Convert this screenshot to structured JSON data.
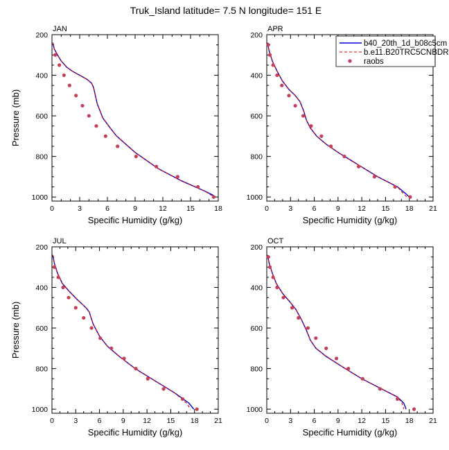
{
  "figure": {
    "title": "Truk_Island  latitude= 7.5 N longitude= 151 E"
  },
  "legend": {
    "entries": [
      {
        "label": "b40_20th_1d_b08c5cm",
        "color": "#0000cc",
        "style": "solid"
      },
      {
        "label": "b.e11.B20TRC5CNBDR",
        "color": "#e00000",
        "style": "dashed"
      },
      {
        "label": "raobs",
        "color": "#c2405a",
        "style": "marker"
      }
    ]
  },
  "chart_data": [
    {
      "type": "line",
      "panel_label": "JAN",
      "xlabel": "Specific Humidity (g/kg)",
      "ylabel": "Pressure (mb)",
      "xlim": [
        0,
        18
      ],
      "ylim": [
        200,
        1020
      ],
      "xticks": [
        0,
        3,
        6,
        9,
        12,
        15,
        18
      ],
      "yticks": [
        200,
        400,
        600,
        800,
        1000
      ],
      "series": [
        {
          "name": "b40_20th_1d_b08c5cm",
          "x": [
            0.1,
            0.25,
            0.6,
            1.0,
            1.6,
            2.2,
            3.0,
            3.8,
            4.3,
            4.5,
            4.9,
            5.5,
            6.3,
            7.0,
            9.0,
            11.5,
            14.0,
            16.5,
            17.4,
            17.7
          ],
          "y": [
            240,
            270,
            300,
            330,
            360,
            380,
            400,
            420,
            440,
            460,
            540,
            610,
            660,
            700,
            780,
            860,
            920,
            970,
            990,
            1000
          ]
        },
        {
          "name": "b.e11.B20TRC5CNBDR",
          "x": [
            0.1,
            0.25,
            0.6,
            1.0,
            1.6,
            2.2,
            3.0,
            3.8,
            4.3,
            4.5,
            4.9,
            5.5,
            6.3,
            7.0,
            9.0,
            11.5,
            14.0,
            16.5,
            17.2,
            17.5
          ],
          "y": [
            240,
            270,
            300,
            330,
            360,
            380,
            400,
            420,
            440,
            460,
            540,
            610,
            660,
            700,
            780,
            860,
            920,
            970,
            990,
            1000
          ]
        },
        {
          "name": "raobs",
          "x": [
            0.35,
            0.8,
            1.3,
            1.9,
            2.6,
            3.3,
            4.0,
            4.8,
            5.8,
            7.1,
            9.1,
            11.3,
            13.6,
            15.8,
            17.5
          ],
          "y": [
            300,
            350,
            400,
            450,
            500,
            550,
            600,
            650,
            700,
            750,
            800,
            850,
            900,
            950,
            1000
          ]
        }
      ]
    },
    {
      "type": "line",
      "panel_label": "APR",
      "xlabel": "Specific Humidity (g/kg)",
      "ylabel": "",
      "xlim": [
        0,
        21
      ],
      "ylim": [
        200,
        1020
      ],
      "xticks": [
        0,
        3,
        6,
        9,
        12,
        15,
        18,
        21
      ],
      "yticks": [
        200,
        400,
        600,
        800,
        1000
      ],
      "series": [
        {
          "name": "b40_20th_1d_b08c5cm",
          "x": [
            0.1,
            0.3,
            0.7,
            1.3,
            2.0,
            2.8,
            3.6,
            4.2,
            4.7,
            5.0,
            5.5,
            6.3,
            7.5,
            9.0,
            11.5,
            14.0,
            16.5,
            17.6,
            18.0
          ],
          "y": [
            240,
            280,
            330,
            380,
            430,
            470,
            500,
            530,
            580,
            620,
            660,
            700,
            740,
            780,
            840,
            900,
            950,
            985,
            1000
          ]
        },
        {
          "name": "b.e11.B20TRC5CNBDR",
          "x": [
            0.1,
            0.3,
            0.7,
            1.3,
            2.0,
            2.8,
            3.6,
            4.2,
            4.7,
            5.0,
            5.5,
            6.3,
            7.5,
            9.0,
            11.5,
            14.0,
            16.5,
            17.3,
            17.7
          ],
          "y": [
            240,
            280,
            330,
            380,
            430,
            470,
            500,
            530,
            580,
            620,
            660,
            700,
            740,
            780,
            840,
            900,
            950,
            985,
            1000
          ]
        },
        {
          "name": "raobs",
          "x": [
            0.2,
            0.4,
            0.8,
            1.3,
            1.9,
            2.8,
            3.6,
            4.6,
            5.6,
            6.9,
            8.1,
            9.8,
            11.6,
            13.6,
            16.2,
            18.1
          ],
          "y": [
            250,
            300,
            350,
            400,
            450,
            500,
            550,
            600,
            650,
            700,
            750,
            800,
            850,
            900,
            950,
            1000
          ]
        }
      ]
    },
    {
      "type": "line",
      "panel_label": "JUL",
      "xlabel": "Specific Humidity (g/kg)",
      "ylabel": "Pressure (mb)",
      "xlim": [
        0,
        21
      ],
      "ylim": [
        200,
        1020
      ],
      "xticks": [
        0,
        3,
        6,
        9,
        12,
        15,
        18,
        21
      ],
      "yticks": [
        200,
        400,
        600,
        800,
        1000
      ],
      "series": [
        {
          "name": "b40_20th_1d_b08c5cm",
          "x": [
            0.1,
            0.3,
            0.7,
            1.3,
            2.2,
            3.2,
            4.3,
            4.7,
            5.2,
            6.0,
            7.0,
            8.5,
            10.5,
            13.0,
            15.5,
            17.3,
            17.9
          ],
          "y": [
            240,
            280,
            330,
            380,
            420,
            460,
            500,
            520,
            580,
            640,
            690,
            740,
            800,
            860,
            920,
            970,
            1000
          ]
        },
        {
          "name": "b.e11.B20TRC5CNBDR",
          "x": [
            0.1,
            0.3,
            0.7,
            1.3,
            2.2,
            3.2,
            4.3,
            4.7,
            5.2,
            6.0,
            7.0,
            8.5,
            10.5,
            13.0,
            15.5,
            17.0,
            17.5
          ],
          "y": [
            240,
            280,
            330,
            380,
            420,
            460,
            500,
            520,
            580,
            640,
            690,
            740,
            800,
            860,
            920,
            970,
            1000
          ]
        },
        {
          "name": "raobs",
          "x": [
            0.3,
            0.8,
            1.4,
            2.1,
            3.0,
            4.0,
            5.0,
            6.1,
            7.5,
            9.1,
            10.6,
            12.1,
            14.1,
            16.5,
            18.3
          ],
          "y": [
            300,
            350,
            400,
            450,
            500,
            550,
            600,
            650,
            700,
            750,
            800,
            850,
            900,
            950,
            1000
          ]
        }
      ]
    },
    {
      "type": "line",
      "panel_label": "OCT",
      "xlabel": "Specific Humidity (g/kg)",
      "ylabel": "",
      "xlim": [
        0,
        21
      ],
      "ylim": [
        200,
        1020
      ],
      "xticks": [
        0,
        3,
        6,
        9,
        12,
        15,
        18,
        21
      ],
      "yticks": [
        200,
        400,
        600,
        800,
        1000
      ],
      "series": [
        {
          "name": "b40_20th_1d_b08c5cm",
          "x": [
            0.1,
            0.3,
            0.7,
            1.2,
            2.0,
            2.9,
            3.7,
            4.4,
            5.0,
            5.5,
            6.2,
            7.5,
            9.5,
            12.0,
            14.5,
            16.5,
            17.3,
            17.6
          ],
          "y": [
            240,
            280,
            330,
            380,
            430,
            470,
            510,
            560,
            610,
            660,
            700,
            740,
            790,
            850,
            900,
            940,
            970,
            1000
          ]
        },
        {
          "name": "b.e11.B20TRC5CNBDR",
          "x": [
            0.1,
            0.3,
            0.7,
            1.2,
            2.0,
            2.9,
            3.7,
            4.4,
            5.0,
            5.5,
            6.2,
            7.5,
            9.5,
            12.0,
            14.5,
            16.5,
            17.1,
            17.3
          ],
          "y": [
            240,
            280,
            330,
            380,
            430,
            470,
            510,
            560,
            610,
            660,
            700,
            740,
            790,
            850,
            900,
            940,
            970,
            1000
          ]
        },
        {
          "name": "raobs",
          "x": [
            0.2,
            0.4,
            0.8,
            1.3,
            2.1,
            3.2,
            4.0,
            5.2,
            6.2,
            7.5,
            8.8,
            10.3,
            12.1,
            14.3,
            16.5,
            18.6
          ],
          "y": [
            250,
            300,
            350,
            400,
            450,
            500,
            550,
            600,
            650,
            700,
            750,
            800,
            850,
            900,
            950,
            1000
          ]
        }
      ]
    }
  ]
}
